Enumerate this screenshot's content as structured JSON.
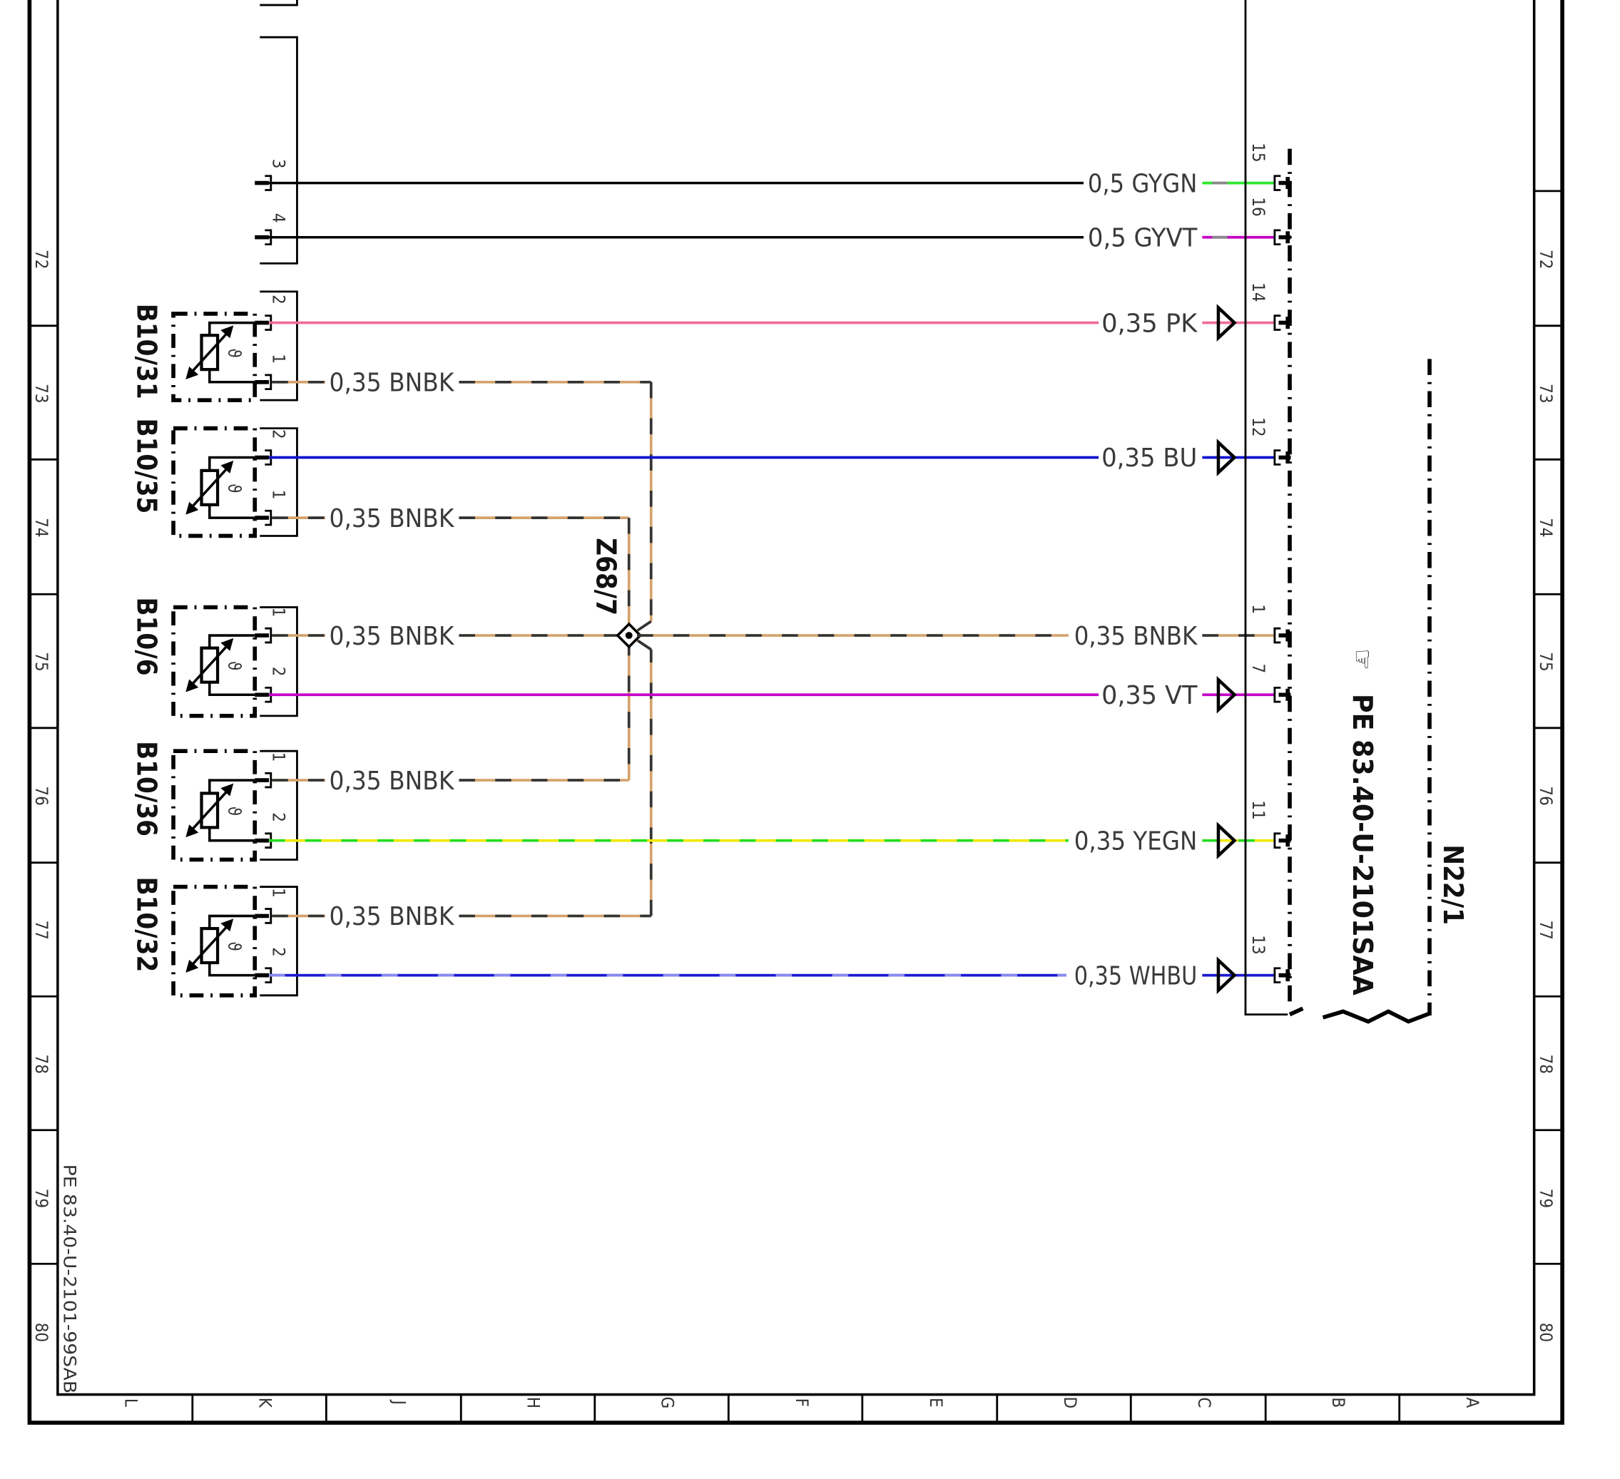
{
  "grid": {
    "rows": [
      "72",
      "73",
      "74",
      "75",
      "76",
      "77",
      "78",
      "79",
      "80"
    ],
    "columns": [
      "L",
      "K",
      "J",
      "H",
      "G",
      "F",
      "E",
      "D",
      "C",
      "B",
      "A"
    ]
  },
  "document_id": "PE 83.40-U-2101-99SAB",
  "connector_top": {
    "pins": [
      "3",
      "4"
    ]
  },
  "sensors": [
    {
      "name": "B10/31",
      "pins": [
        "2",
        "1"
      ],
      "symbol": "ϑ"
    },
    {
      "name": "B10/35",
      "pins": [
        "2",
        "1"
      ],
      "symbol": "ϑ"
    },
    {
      "name": "B10/6",
      "pins": [
        "1",
        "2"
      ],
      "symbol": "ϑ"
    },
    {
      "name": "B10/36",
      "pins": [
        "1",
        "2"
      ],
      "symbol": "ϑ"
    },
    {
      "name": "B10/32",
      "pins": [
        "1",
        "2"
      ],
      "symbol": "ϑ"
    }
  ],
  "splice": "Z68/7",
  "control_unit": {
    "name": "N22/1",
    "reference": "PE 83.40-U-2101SAA",
    "reference_icon": "pointing-hand-icon"
  },
  "wires": [
    {
      "label": "0,5 GYGN",
      "colors": [
        "#2ee82e",
        "#8a8a8a"
      ],
      "pin": "15"
    },
    {
      "label": "0,5 GYVT",
      "colors": [
        "#c400c8",
        "#8a8a8a"
      ],
      "pin": "16"
    },
    {
      "label": "0,35 PK",
      "colors": [
        "#ef6b96",
        "#ef6b96"
      ],
      "pin": "14"
    },
    {
      "label": "0,35 BU",
      "colors": [
        "#1010d0",
        "#1010d0"
      ],
      "pin": "12"
    },
    {
      "label": "0,35 BNBK",
      "colors": [
        "#d4a26a",
        "#333333"
      ],
      "pin": "1"
    },
    {
      "label": "0,35 VT",
      "colors": [
        "#c400c8",
        "#c400c8"
      ],
      "pin": "7"
    },
    {
      "label": "0,35 YEGN",
      "colors": [
        "#f0e800",
        "#22dd22"
      ],
      "pin": "11"
    },
    {
      "label": "0,35 WHBU",
      "colors": [
        "#1a1ad0",
        "#ffffff"
      ],
      "pin": "13"
    }
  ],
  "harness_wires": [
    {
      "label": "0,35 BNBK",
      "colors": [
        "#d4a26a",
        "#333333"
      ]
    },
    {
      "label": "0,35 BNBK",
      "colors": [
        "#d4a26a",
        "#333333"
      ]
    },
    {
      "label": "0,35 BNBK",
      "colors": [
        "#d4a26a",
        "#333333"
      ]
    },
    {
      "label": "0,35 BNBK",
      "colors": [
        "#d4a26a",
        "#333333"
      ]
    },
    {
      "label": "0,35 BNBK",
      "colors": [
        "#d4a26a",
        "#333333"
      ]
    }
  ]
}
